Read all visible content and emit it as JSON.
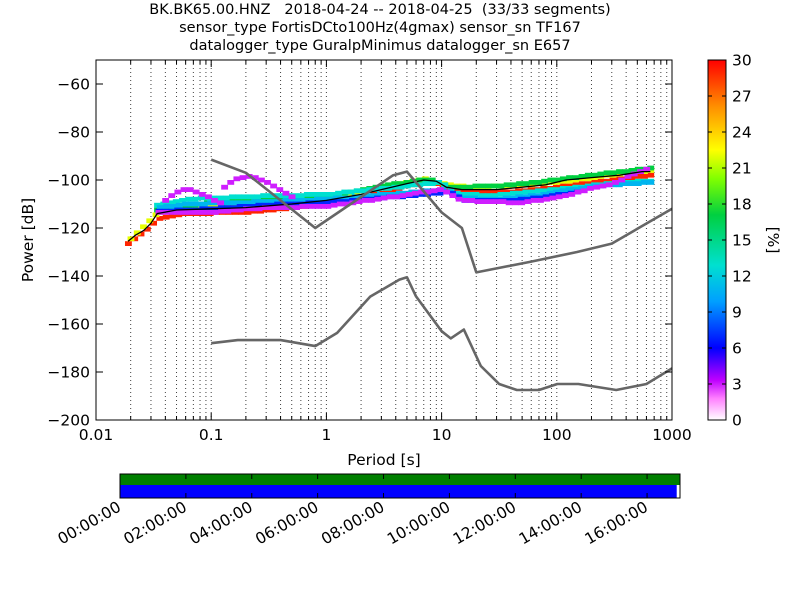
{
  "chart_data": {
    "type": "heatmap",
    "title_lines": [
      "BK.BK65.00.HNZ   2018-04-24 -- 2018-04-25  (33/33 segments)",
      "sensor_type FortisDCto100Hz(4gmax) sensor_sn TF167",
      "datalogger_type GuralpMinimus datalogger_sn E657"
    ],
    "xlabel": "Period [s]",
    "ylabel": "Power [dB]",
    "x_scale": "log",
    "xlim": [
      0.01,
      1000
    ],
    "ylim": [
      -200,
      -50
    ],
    "x_ticks": [
      0.01,
      0.1,
      1,
      10,
      100,
      1000
    ],
    "x_tick_labels": [
      "0.01",
      "0.1",
      "1",
      "10",
      "100",
      "1000"
    ],
    "y_ticks": [
      -200,
      -180,
      -160,
      -140,
      -120,
      -100,
      -80,
      -60
    ],
    "y_tick_labels": [
      "−200",
      "−180",
      "−160",
      "−140",
      "−120",
      "−100",
      "−80",
      "−60"
    ],
    "grid": "dotted vertical",
    "colorbar": {
      "label": "[%]",
      "range": [
        0,
        30
      ],
      "ticks": [
        "0",
        "3",
        "6",
        "9",
        "12",
        "15",
        "18",
        "21",
        "24",
        "27",
        "30"
      ]
    },
    "reference_curves": [
      {
        "points": [
          [
            0.1,
            -91.5
          ],
          [
            0.2,
            -97
          ],
          [
            0.8,
            -120
          ],
          [
            3.8,
            -98
          ],
          [
            5,
            -96.5
          ],
          [
            10,
            -113.5
          ],
          [
            15,
            -120
          ],
          [
            20,
            -138.5
          ],
          [
            60,
            -134
          ],
          [
            150,
            -130
          ],
          [
            300,
            -126.5
          ],
          [
            1000,
            -112
          ]
        ]
      },
      {
        "points": [
          [
            0.1,
            -168
          ],
          [
            0.17,
            -166.7
          ],
          [
            0.4,
            -166.7
          ],
          [
            0.8,
            -169.2
          ],
          [
            1.24,
            -163.7
          ],
          [
            2.4,
            -148.6
          ],
          [
            4.3,
            -141.5
          ],
          [
            5,
            -140.5
          ],
          [
            6,
            -148.5
          ],
          [
            10,
            -163
          ],
          [
            12,
            -166
          ],
          [
            15.6,
            -162.3
          ],
          [
            21.9,
            -177.5
          ],
          [
            31.6,
            -185
          ],
          [
            45,
            -187.5
          ],
          [
            70,
            -187.5
          ],
          [
            101,
            -185
          ],
          [
            154,
            -185
          ],
          [
            328,
            -187.5
          ],
          [
            600,
            -185
          ],
          [
            1000,
            -178.5
          ]
        ]
      }
    ],
    "psd_mode": [
      [
        0.019,
        -125.5
      ],
      [
        0.022,
        -123
      ],
      [
        0.026,
        -121
      ],
      [
        0.03,
        -118
      ],
      [
        0.034,
        -114
      ],
      [
        0.05,
        -112.5
      ],
      [
        0.1,
        -112
      ],
      [
        0.2,
        -111.5
      ],
      [
        0.5,
        -110
      ],
      [
        1,
        -108.5
      ],
      [
        2,
        -106
      ],
      [
        3,
        -104
      ],
      [
        5,
        -101.5
      ],
      [
        7,
        -100
      ],
      [
        9,
        -100.5
      ],
      [
        11,
        -103
      ],
      [
        15,
        -104
      ],
      [
        20,
        -104
      ],
      [
        30,
        -104
      ],
      [
        50,
        -103
      ],
      [
        80,
        -102
      ],
      [
        120,
        -100
      ],
      [
        200,
        -99
      ],
      [
        350,
        -98
      ],
      [
        550,
        -96.5
      ],
      [
        650,
        -96.5
      ]
    ],
    "psd_bands": [
      {
        "pct": 29,
        "points": [
          [
            0.019,
            -126.5
          ],
          [
            0.03,
            -119
          ],
          [
            0.034,
            -116
          ],
          [
            0.06,
            -114
          ],
          [
            0.2,
            -113.5
          ],
          [
            0.5,
            -111.5
          ],
          [
            1,
            -110
          ],
          [
            2,
            -107.5
          ],
          [
            5,
            -102.5
          ],
          [
            7,
            -100.5
          ],
          [
            10,
            -102
          ],
          [
            15,
            -105
          ],
          [
            40,
            -105
          ],
          [
            100,
            -103
          ],
          [
            300,
            -100
          ],
          [
            650,
            -98
          ]
        ]
      },
      {
        "pct": 22,
        "points": [
          [
            0.02,
            -124.5
          ],
          [
            0.035,
            -113.5
          ],
          [
            0.1,
            -111
          ],
          [
            0.3,
            -110.5
          ],
          [
            0.6,
            -108.5
          ],
          [
            1,
            -107.5
          ],
          [
            3,
            -103
          ],
          [
            7,
            -99.5
          ],
          [
            11,
            -102
          ],
          [
            20,
            -103
          ],
          [
            60,
            -102
          ],
          [
            150,
            -100
          ],
          [
            400,
            -97
          ],
          [
            650,
            -96
          ]
        ]
      },
      {
        "pct": 17,
        "points": [
          [
            0.034,
            -112.5
          ],
          [
            0.1,
            -109.5
          ],
          [
            0.2,
            -108
          ],
          [
            0.5,
            -107.5
          ],
          [
            1,
            -107
          ],
          [
            3,
            -102.5
          ],
          [
            8,
            -99.5
          ],
          [
            12,
            -103
          ],
          [
            30,
            -102.5
          ],
          [
            80,
            -100.5
          ],
          [
            200,
            -98
          ],
          [
            650,
            -95
          ]
        ]
      },
      {
        "pct": 13,
        "points": [
          [
            0.034,
            -110.5
          ],
          [
            0.06,
            -108
          ],
          [
            0.1,
            -107.5
          ],
          [
            0.2,
            -107
          ],
          [
            0.4,
            -106.5
          ],
          [
            1,
            -106
          ],
          [
            10,
            -101
          ],
          [
            13,
            -105.5
          ],
          [
            25,
            -106.5
          ],
          [
            60,
            -105
          ],
          [
            150,
            -103
          ],
          [
            350,
            -101
          ],
          [
            650,
            -100.5
          ]
        ]
      },
      {
        "pct": 11,
        "points": [
          [
            0.036,
            -111.5
          ],
          [
            0.06,
            -110
          ],
          [
            0.15,
            -109.5
          ],
          [
            0.3,
            -109
          ],
          [
            1,
            -108
          ],
          [
            11,
            -104
          ],
          [
            14,
            -107.5
          ],
          [
            30,
            -108
          ],
          [
            80,
            -106
          ],
          [
            200,
            -102.5
          ],
          [
            650,
            -101
          ]
        ]
      },
      {
        "pct": 7,
        "points": [
          [
            0.035,
            -113
          ],
          [
            0.1,
            -112
          ],
          [
            0.4,
            -110
          ],
          [
            1,
            -109.5
          ],
          [
            12,
            -105
          ],
          [
            16,
            -108.5
          ],
          [
            40,
            -108.5
          ],
          [
            70,
            -107.5
          ],
          [
            150,
            -105
          ]
        ]
      },
      {
        "pct": 3,
        "points": [
          [
            0.04,
            -108.5
          ],
          [
            0.05,
            -105
          ],
          [
            0.06,
            -103.5
          ],
          [
            0.08,
            -105.5
          ],
          [
            0.12,
            -109.5
          ]
        ]
      },
      {
        "pct": 3,
        "points": [
          [
            0.13,
            -103
          ],
          [
            0.16,
            -100
          ],
          [
            0.2,
            -98.5
          ],
          [
            0.25,
            -99
          ],
          [
            0.3,
            -101
          ],
          [
            0.4,
            -104
          ],
          [
            0.5,
            -107
          ]
        ]
      },
      {
        "pct": 3,
        "points": [
          [
            0.035,
            -113.5
          ],
          [
            0.1,
            -113.5
          ],
          [
            0.3,
            -111.5
          ],
          [
            1,
            -111
          ],
          [
            10,
            -104
          ],
          [
            15,
            -108.5
          ],
          [
            50,
            -109.5
          ],
          [
            120,
            -106.5
          ],
          [
            200,
            -103.5
          ],
          [
            300,
            -101.5
          ],
          [
            600,
            -95.5
          ]
        ]
      }
    ],
    "timeline": {
      "time_labels": [
        "00:00:00",
        "02:00:00",
        "04:00:00",
        "06:00:00",
        "08:00:00",
        "10:00:00",
        "12:00:00",
        "14:00:00",
        "16:00:00"
      ],
      "range_hours": [
        0,
        17
      ],
      "data_end_hours": 17,
      "bars": [
        {
          "color": "#007f00",
          "end_hours": 17
        },
        {
          "color": "#0000ff",
          "end_hours": 16.9
        }
      ]
    }
  }
}
